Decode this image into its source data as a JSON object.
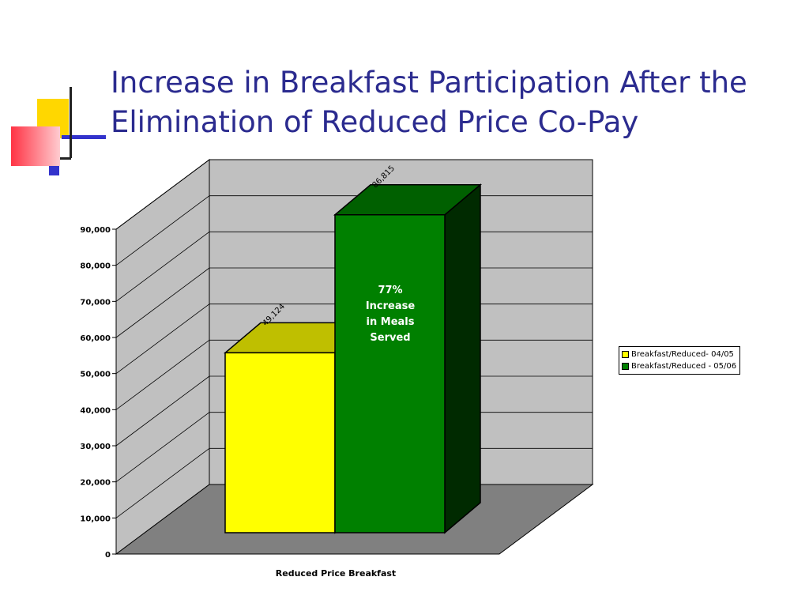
{
  "slide": {
    "title": "Increase in Breakfast Participation After the Elimination of Reduced Price Co-Pay"
  },
  "colors": {
    "title": "#2B2B8F",
    "wall": "#C0C0C0",
    "floor": "#808080",
    "series_2004_05": "#FFFF00",
    "series_2005_06": "#008000"
  },
  "chart_data": {
    "type": "bar",
    "style": "3d-clustered-column",
    "categories": [
      "Reduced Price Breakfast"
    ],
    "xlabel": "Reduced Price Breakfast",
    "ylabel": "",
    "ylim": [
      0,
      90000
    ],
    "yticks": [
      "0",
      "10,000",
      "20,000",
      "30,000",
      "40,000",
      "50,000",
      "60,000",
      "70,000",
      "80,000",
      "90,000"
    ],
    "grid": true,
    "legend_position": "right",
    "series": [
      {
        "name": "Breakfast/Reduced- 04/05",
        "values": [
          49124
        ],
        "label": "49,124",
        "color": "#FFFF00"
      },
      {
        "name": "Breakfast/Reduced - 05/06",
        "values": [
          86815
        ],
        "label": "86,815",
        "color": "#008000"
      }
    ],
    "annotation": [
      "77%",
      "Increase",
      "in Meals",
      "Served"
    ]
  }
}
